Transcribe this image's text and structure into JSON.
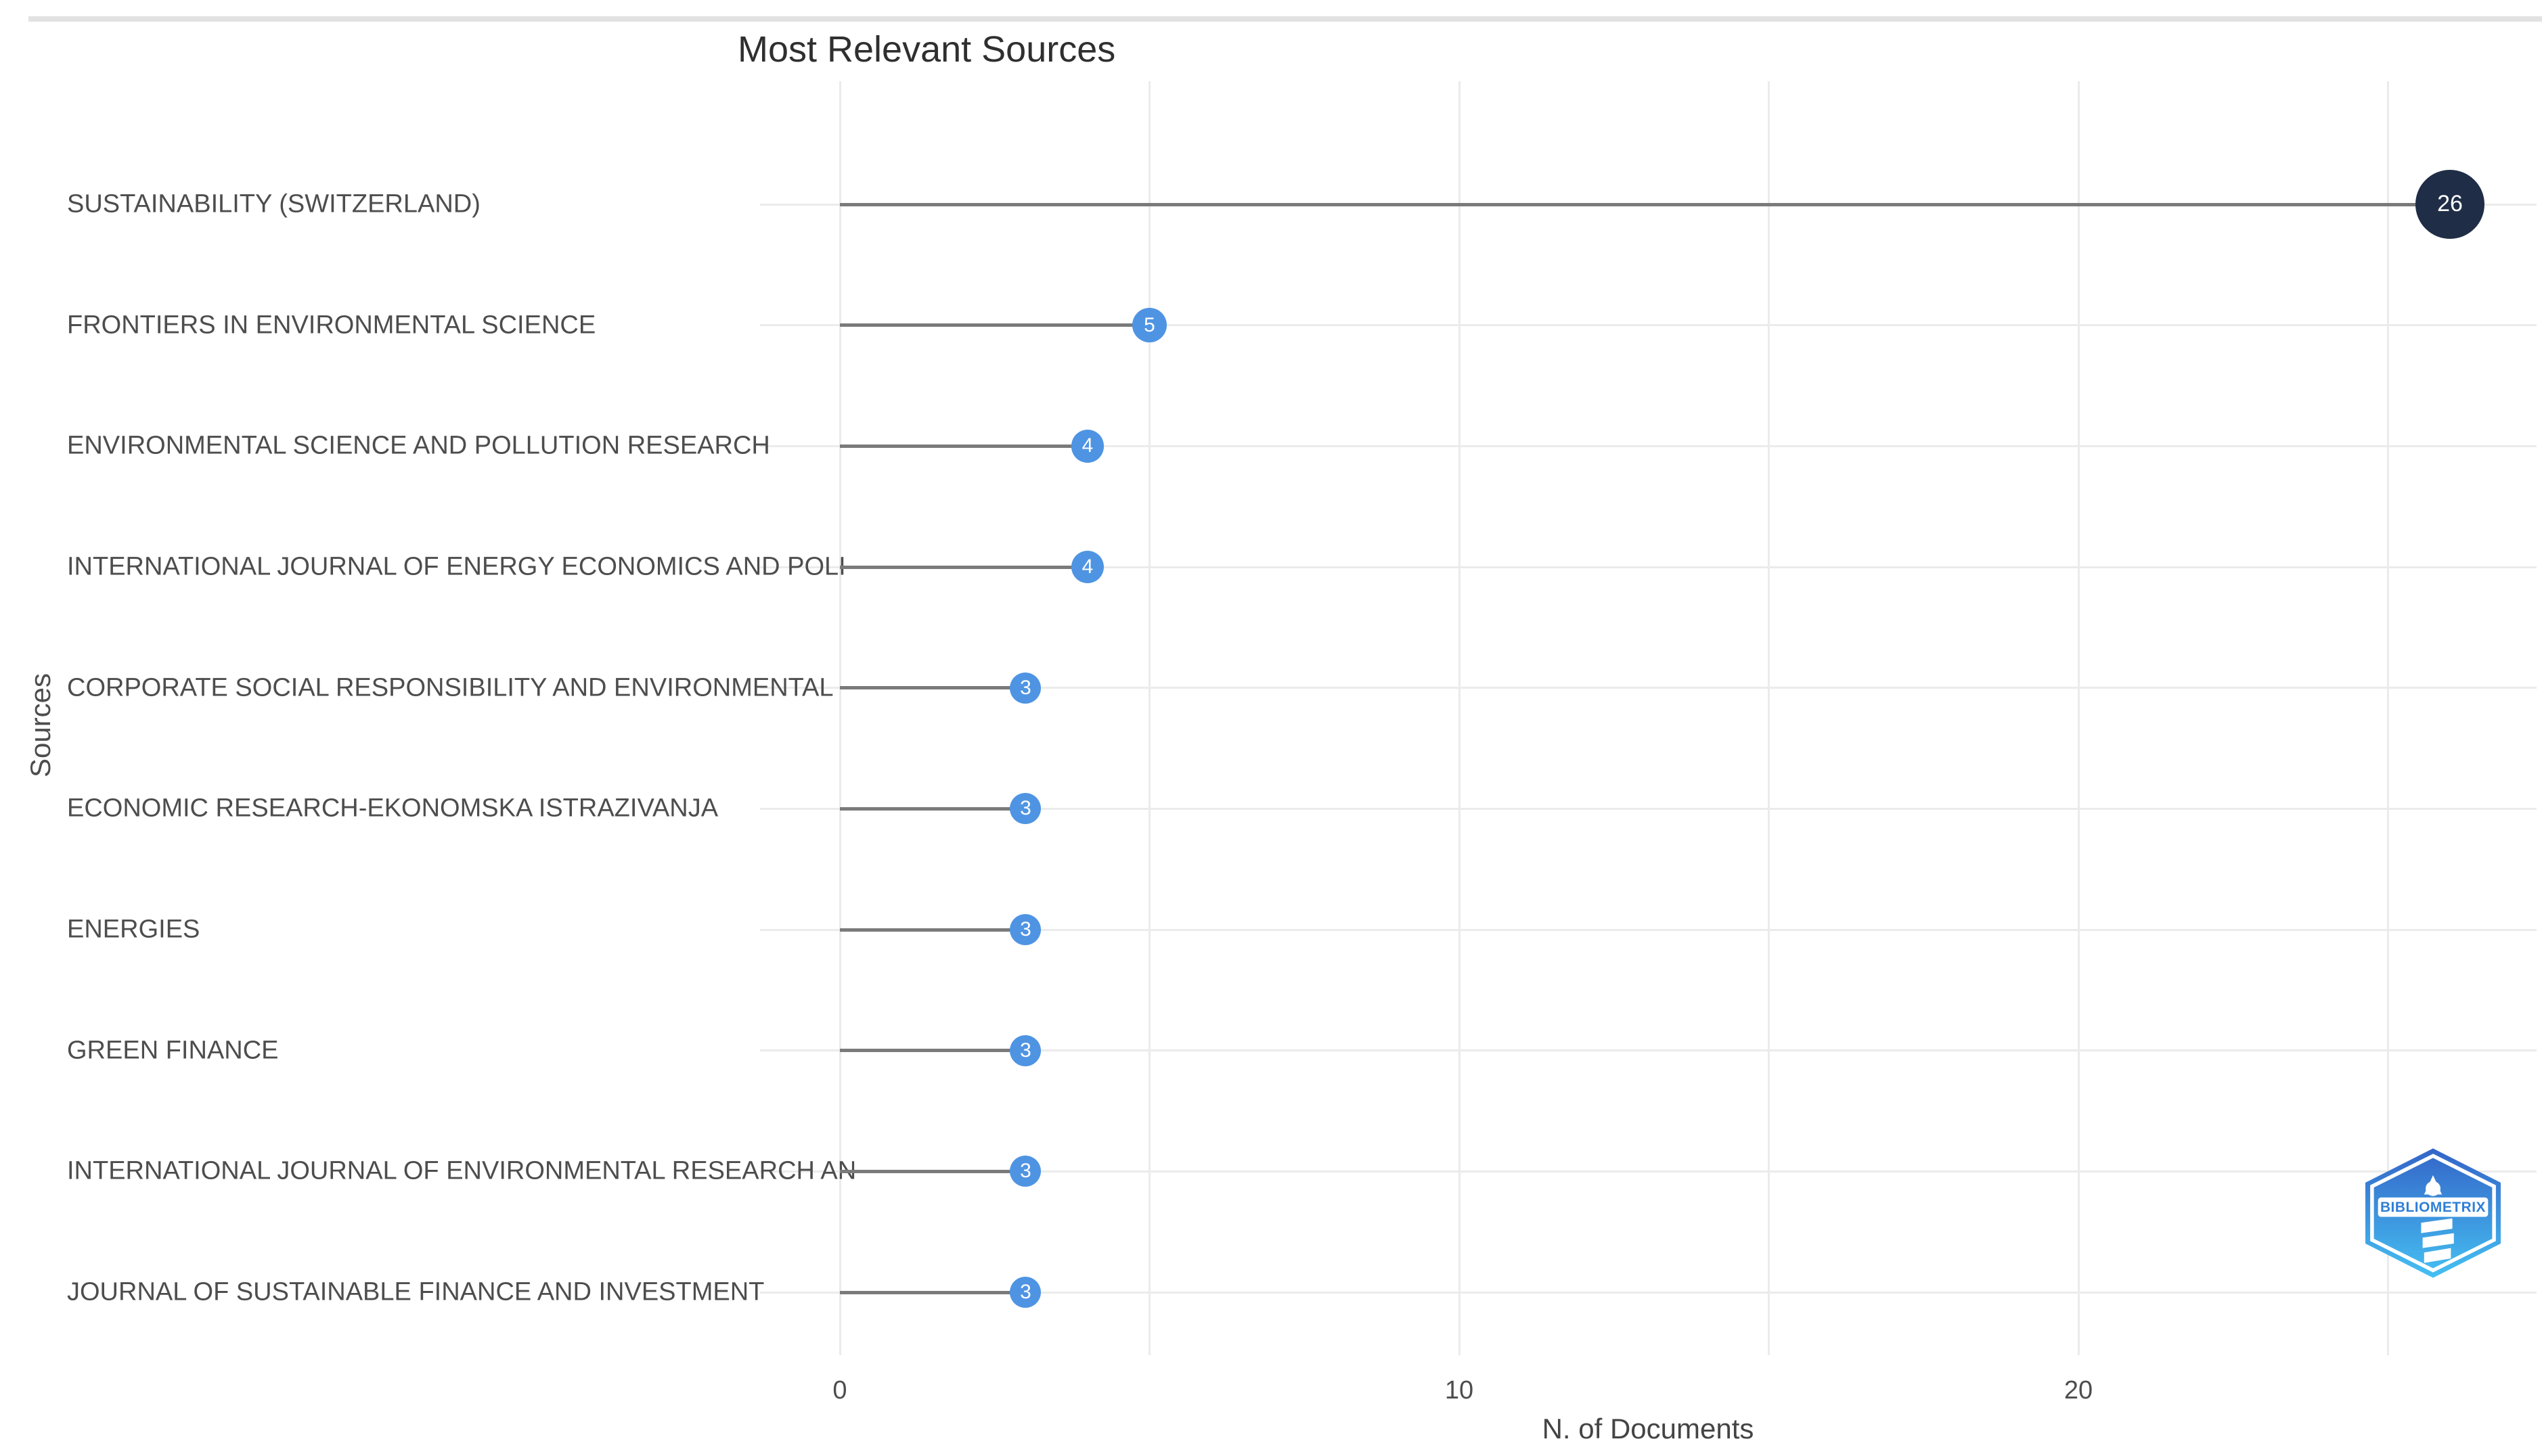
{
  "window": {
    "top_strip_color": "#e2e2e2",
    "background": "#ffffff"
  },
  "chart_data": {
    "type": "scatter",
    "subtype": "lollipop-horizontal",
    "title": "Most Relevant Sources",
    "xlabel": "N. of Documents",
    "ylabel": "Sources",
    "categories": [
      "SUSTAINABILITY (SWITZERLAND)",
      "FRONTIERS IN ENVIRONMENTAL SCIENCE",
      "ENVIRONMENTAL SCIENCE AND POLLUTION RESEARCH",
      "INTERNATIONAL JOURNAL OF ENERGY ECONOMICS AND POLI",
      "CORPORATE SOCIAL RESPONSIBILITY AND ENVIRONMENTAL",
      "ECONOMIC RESEARCH-EKONOMSKA ISTRAZIVANJA",
      "ENERGIES",
      "GREEN FINANCE",
      "INTERNATIONAL JOURNAL OF ENVIRONMENTAL RESEARCH AN",
      "JOURNAL OF SUSTAINABLE FINANCE AND INVESTMENT"
    ],
    "values": [
      26,
      5,
      4,
      4,
      3,
      3,
      3,
      3,
      3,
      3
    ],
    "point_labels": [
      "26",
      "5",
      "4",
      "4",
      "3",
      "3",
      "3",
      "3",
      "3",
      "3"
    ],
    "x_tick_labels": [
      "0",
      "10",
      "20"
    ],
    "x_tick_values": [
      0,
      10,
      20
    ],
    "x_gridline_values": [
      0,
      5,
      10,
      15,
      20,
      25
    ],
    "xlim": [
      -1.3,
      27.4
    ],
    "grid": true,
    "legend": "none",
    "colors": {
      "bubble_default": "#4f94e3",
      "bubble_max": "#1f2d46",
      "bubble_text": "#ffffff",
      "stem": "#7a7a7a",
      "gridline": "#ebebeb",
      "title_text": "#2f2f2f",
      "axis_text": "#4d4d4d"
    }
  },
  "logo": {
    "label": "BIBLIOMETRIX",
    "gradient_top": "#3465c8",
    "gradient_bottom": "#45c0f2"
  }
}
